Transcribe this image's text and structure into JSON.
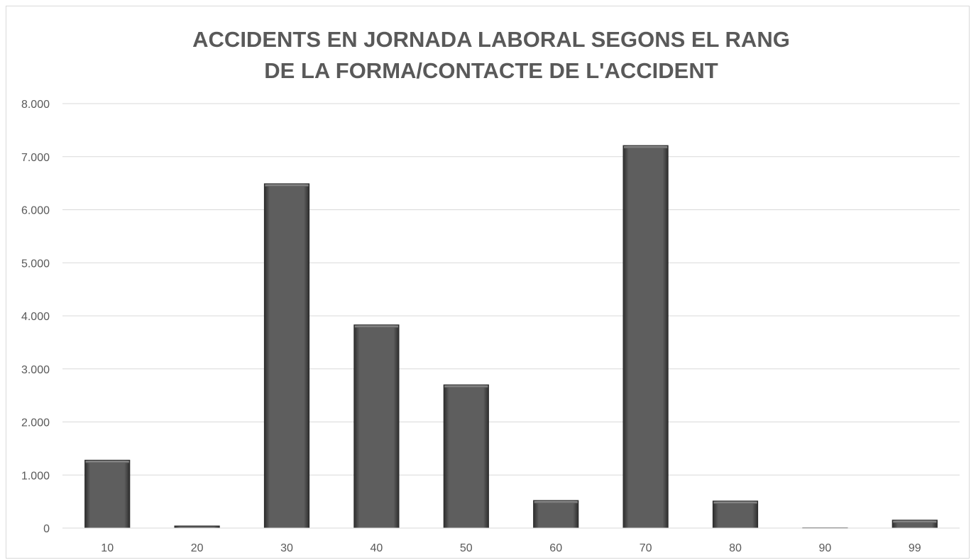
{
  "chart_data": {
    "type": "bar",
    "title_lines": [
      "ACCIDENTS EN JORNADA LABORAL SEGONS EL RANG",
      "DE LA FORMA/CONTACTE DE L'ACCIDENT"
    ],
    "xlabel": "",
    "ylabel": "",
    "categories": [
      "10",
      "20",
      "30",
      "40",
      "50",
      "60",
      "70",
      "80",
      "90",
      "99"
    ],
    "values": [
      1280,
      40,
      6490,
      3830,
      2700,
      520,
      7210,
      510,
      5,
      150
    ],
    "ylim": [
      0,
      8000
    ],
    "yticks": [
      0,
      1000,
      2000,
      3000,
      4000,
      5000,
      6000,
      7000,
      8000
    ],
    "ytick_labels": [
      "0",
      "1.000",
      "2.000",
      "3.000",
      "4.000",
      "5.000",
      "6.000",
      "7.000",
      "8.000"
    ],
    "grid": true,
    "legend": "none",
    "bar_color": "#5a5a5a",
    "grid_color": "#d9d9d9",
    "text_color": "#595959"
  }
}
